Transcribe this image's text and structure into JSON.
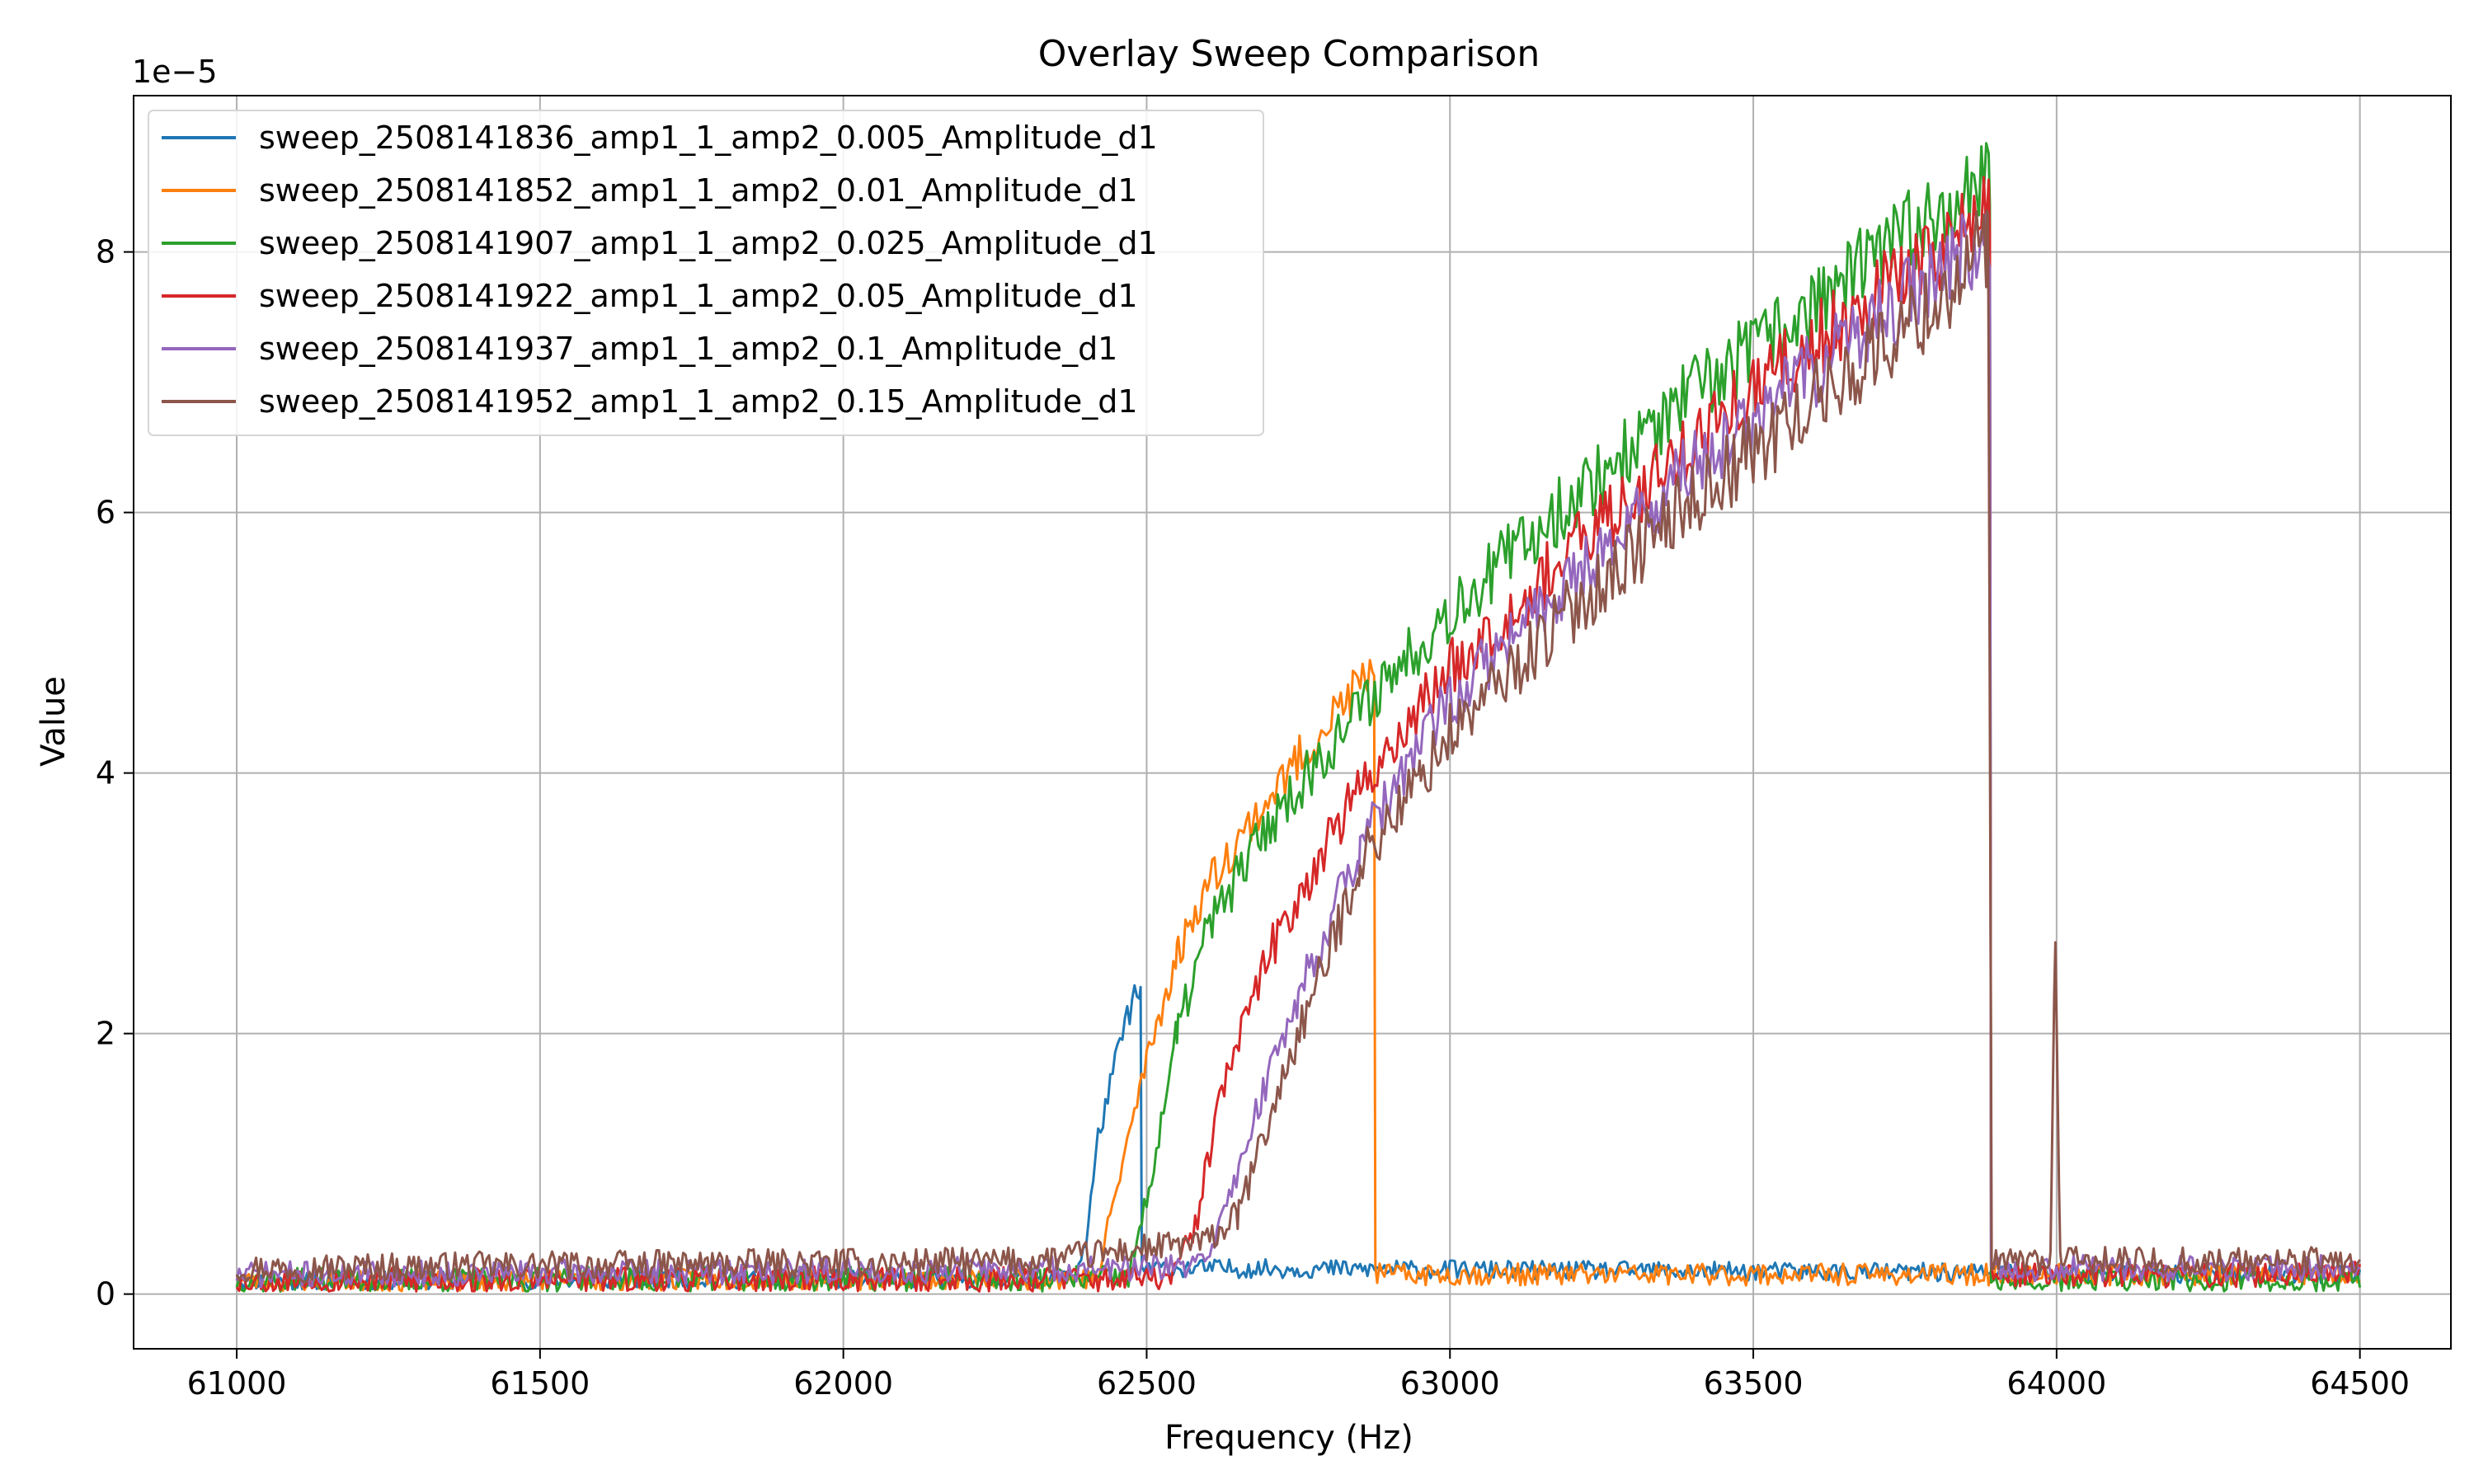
{
  "chart_data": {
    "type": "line",
    "title": "Overlay Sweep Comparison",
    "xlabel": "Frequency (Hz)",
    "ylabel": "Value",
    "y_offset_label": "1e−5",
    "y_scale": 1e-05,
    "xlim": [
      60830,
      64650
    ],
    "ylim": [
      -0.42,
      9.2
    ],
    "xticks": [
      61000,
      61500,
      62000,
      62500,
      63000,
      63500,
      64000,
      64500
    ],
    "xtick_labels": [
      "61000",
      "61500",
      "62000",
      "62500",
      "63000",
      "63500",
      "64000",
      "64500"
    ],
    "yticks": [
      0,
      2,
      4,
      6,
      8
    ],
    "ytick_labels": [
      "0",
      "2",
      "4",
      "6",
      "8"
    ],
    "grid": true,
    "legend_position": "upper-left",
    "series": [
      {
        "name": "sweep_2508141836_amp1_1_amp2_0.005_Amplitude_d1",
        "color": "#1f77b4",
        "noise_seed": 11,
        "noise": 0.17,
        "points": [
          [
            61000,
            0.1
          ],
          [
            62380,
            0.12
          ],
          [
            62400,
            0.4
          ],
          [
            62420,
            1.2
          ],
          [
            62440,
            1.6
          ],
          [
            62460,
            2.0
          ],
          [
            62480,
            2.3
          ],
          [
            62490,
            2.25
          ],
          [
            62492,
            0.2
          ],
          [
            64500,
            0.15
          ]
        ]
      },
      {
        "name": "sweep_2508141852_amp1_1_amp2_0.01_Amplitude_d1",
        "color": "#ff7f0e",
        "noise_seed": 23,
        "noise": 0.2,
        "points": [
          [
            61000,
            0.1
          ],
          [
            62420,
            0.12
          ],
          [
            62440,
            0.6
          ],
          [
            62500,
            1.8
          ],
          [
            62550,
            2.6
          ],
          [
            62600,
            3.15
          ],
          [
            62700,
            3.8
          ],
          [
            62800,
            4.4
          ],
          [
            62875,
            4.8
          ],
          [
            62877,
            0.15
          ],
          [
            64500,
            0.15
          ]
        ]
      },
      {
        "name": "sweep_2508141907_amp1_1_amp2_0.025_Amplitude_d1",
        "color": "#2ca02c",
        "noise_seed": 37,
        "noise": 0.24,
        "points": [
          [
            61000,
            0.1
          ],
          [
            62470,
            0.12
          ],
          [
            62500,
            0.7
          ],
          [
            62550,
            2.0
          ],
          [
            62600,
            2.8
          ],
          [
            62700,
            3.6
          ],
          [
            62800,
            4.2
          ],
          [
            62900,
            4.75
          ],
          [
            63000,
            5.25
          ],
          [
            63200,
            6.1
          ],
          [
            63400,
            6.9
          ],
          [
            63600,
            7.6
          ],
          [
            63800,
            8.3
          ],
          [
            63890,
            8.6
          ],
          [
            63892,
            0.1
          ],
          [
            64500,
            0.1
          ]
        ]
      },
      {
        "name": "sweep_2508141922_amp1_1_amp2_0.05_Amplitude_d1",
        "color": "#d62728",
        "noise_seed": 53,
        "noise": 0.24,
        "points": [
          [
            61000,
            0.1
          ],
          [
            62540,
            0.12
          ],
          [
            62580,
            0.5
          ],
          [
            62620,
            1.5
          ],
          [
            62700,
            2.6
          ],
          [
            62800,
            3.5
          ],
          [
            62900,
            4.2
          ],
          [
            63000,
            4.8
          ],
          [
            63200,
            5.7
          ],
          [
            63400,
            6.55
          ],
          [
            63600,
            7.3
          ],
          [
            63800,
            8.0
          ],
          [
            63890,
            8.35
          ],
          [
            63892,
            0.15
          ],
          [
            64500,
            0.15
          ]
        ]
      },
      {
        "name": "sweep_2508141937_amp1_1_amp2_0.1_Amplitude_d1",
        "color": "#9467bd",
        "noise_seed": 71,
        "noise": 0.24,
        "points": [
          [
            61000,
            0.15
          ],
          [
            62580,
            0.2
          ],
          [
            62620,
            0.5
          ],
          [
            62680,
            1.4
          ],
          [
            62750,
            2.3
          ],
          [
            62850,
            3.4
          ],
          [
            62950,
            4.2
          ],
          [
            63000,
            4.55
          ],
          [
            63200,
            5.5
          ],
          [
            63400,
            6.35
          ],
          [
            63600,
            7.1
          ],
          [
            63800,
            7.8
          ],
          [
            63890,
            8.15
          ],
          [
            63892,
            0.2
          ],
          [
            64500,
            0.2
          ]
        ]
      },
      {
        "name": "sweep_2508141952_amp1_1_amp2_0.15_Amplitude_d1",
        "color": "#8c564b",
        "noise_seed": 97,
        "noise": 0.26,
        "points": [
          [
            61000,
            0.2
          ],
          [
            62300,
            0.25
          ],
          [
            62600,
            0.4
          ],
          [
            62650,
            0.6
          ],
          [
            62700,
            1.3
          ],
          [
            62750,
            2.0
          ],
          [
            62800,
            2.6
          ],
          [
            62850,
            3.3
          ],
          [
            62950,
            3.95
          ],
          [
            63000,
            4.3
          ],
          [
            63200,
            5.25
          ],
          [
            63400,
            6.1
          ],
          [
            63600,
            6.85
          ],
          [
            63800,
            7.6
          ],
          [
            63885,
            8.05
          ],
          [
            63887,
            8.2
          ],
          [
            63893,
            0.25
          ],
          [
            63990,
            0.25
          ],
          [
            63998,
            2.85
          ],
          [
            64006,
            0.25
          ],
          [
            64500,
            0.25
          ]
        ]
      }
    ]
  }
}
